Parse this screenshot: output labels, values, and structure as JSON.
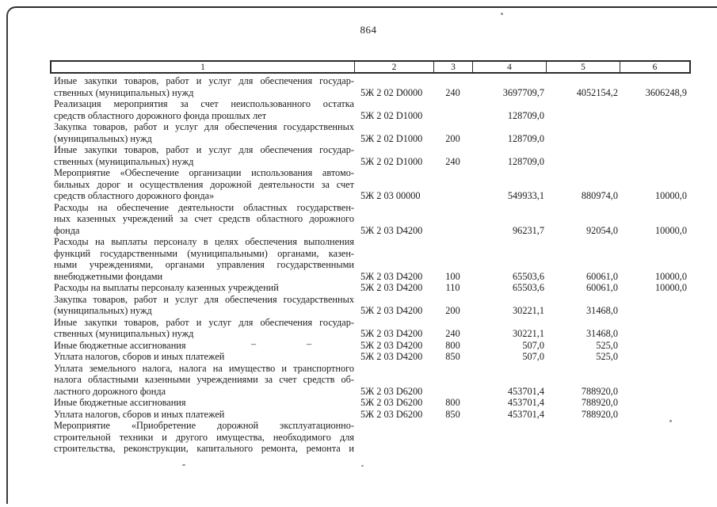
{
  "page": {
    "number": "864"
  },
  "table": {
    "columns": [
      "1",
      "2",
      "3",
      "4",
      "5",
      "6"
    ],
    "rows": [
      {
        "name_lines": [
          "Иные закупки товаров, работ и услуг для обеспечения государ-",
          "ственных (муниципальных) нужд"
        ],
        "code": "5Ж 2 02 D0000",
        "vr": "240",
        "sum1": "3697709,7",
        "sum2": "4052154,2",
        "sum3": "3606248,9"
      },
      {
        "name_lines": [
          "Реализация мероприятия за счет неиспользованного остатка",
          "средств областного дорожного фонда прошлых лет"
        ],
        "code": "5Ж 2 02 D1000",
        "vr": "",
        "sum1": "128709,0",
        "sum2": "",
        "sum3": ""
      },
      {
        "name_lines": [
          "Закупка товаров, работ и услуг для обеспечения государственных",
          "(муниципальных) нужд"
        ],
        "code": "5Ж 2 02 D1000",
        "vr": "200",
        "sum1": "128709,0",
        "sum2": "",
        "sum3": ""
      },
      {
        "name_lines": [
          "Иные закупки товаров, работ и услуг для обеспечения государ-",
          "ственных (муниципальных) нужд"
        ],
        "code": "5Ж 2 02 D1000",
        "vr": "240",
        "sum1": "128709,0",
        "sum2": "",
        "sum3": ""
      },
      {
        "name_lines": [
          "Мероприятие «Обеспечение организации использования автомо-",
          "бильных дорог и осуществления дорожной деятельности за счет",
          "средств областного дорожного фонда»"
        ],
        "code": "5Ж 2 03 00000",
        "vr": "",
        "sum1": "549933,1",
        "sum2": "880974,0",
        "sum3": "10000,0"
      },
      {
        "name_lines": [
          "Расходы на обеспечение деятельности областных государствен-",
          "ных казенных учреждений за счет средств областного дорожного",
          "фонда"
        ],
        "code": "5Ж 2 03 D4200",
        "vr": "",
        "sum1": "96231,7",
        "sum2": "92054,0",
        "sum3": "10000,0"
      },
      {
        "name_lines": [
          "Расходы на выплаты персоналу в целях обеспечения выполнения",
          "функций государственными (муниципальными) органами, казен-",
          "ными учреждениями, органами управления государственными",
          "внебюджетными фондами"
        ],
        "code": "5Ж 2 03 D4200",
        "vr": "100",
        "sum1": "65503,6",
        "sum2": "60061,0",
        "sum3": "10000,0"
      },
      {
        "name_lines": [
          "Расходы на выплаты персоналу казенных учреждений"
        ],
        "code": "5Ж 2 03 D4200",
        "vr": "110",
        "sum1": "65503,6",
        "sum2": "60061,0",
        "sum3": "10000,0"
      },
      {
        "name_lines": [
          "Закупка товаров, работ и услуг для обеспечения государственных",
          "(муниципальных) нужд"
        ],
        "code": "5Ж 2 03 D4200",
        "vr": "200",
        "sum1": "30221,1",
        "sum2": "31468,0",
        "sum3": ""
      },
      {
        "name_lines": [
          "Иные закупки товаров, работ и услуг для обеспечения государ-",
          "ственных (муниципальных) нужд"
        ],
        "code": "5Ж 2 03 D4200",
        "vr": "240",
        "sum1": "30221,1",
        "sum2": "31468,0",
        "sum3": ""
      },
      {
        "name_lines": [
          "Иные бюджетные ассигнования"
        ],
        "code": "5Ж 2 03 D4200",
        "vr": "800",
        "sum1": "507,0",
        "sum2": "525,0",
        "sum3": "",
        "dashes": [
          "–",
          "–"
        ]
      },
      {
        "name_lines": [
          "Уплата налогов, сборов и иных платежей"
        ],
        "code": "5Ж 2 03 D4200",
        "vr": "850",
        "sum1": "507,0",
        "sum2": "525,0",
        "sum3": ""
      },
      {
        "name_lines": [
          "Уплата земельного налога, налога на имущество и транспортного",
          "налога областными казенными учреждениями за счет средств об-",
          "ластного дорожного фонда"
        ],
        "code": "5Ж 2 03 D6200",
        "vr": "",
        "sum1": "453701,4",
        "sum2": "788920,0",
        "sum3": ""
      },
      {
        "name_lines": [
          "Иные бюджетные ассигнования"
        ],
        "code": "5Ж 2 03 D6200",
        "vr": "800",
        "sum1": "453701,4",
        "sum2": "788920,0",
        "sum3": ""
      },
      {
        "name_lines": [
          "Уплата налогов, сборов и иных платежей"
        ],
        "code": "5Ж 2 03 D6200",
        "vr": "850",
        "sum1": "453701,4",
        "sum2": "788920,0",
        "sum3": ""
      },
      {
        "name_lines": [
          "Мероприятие «Приобретение дорожной эксплуатационно-",
          "строительной техники и другого имущества, необходимого для",
          "строительства, реконструкции, капитального ремонта, ремонта и"
        ],
        "code": "",
        "vr": "",
        "sum1": "",
        "sum2": "",
        "sum3": "",
        "justify_last": true
      }
    ]
  }
}
